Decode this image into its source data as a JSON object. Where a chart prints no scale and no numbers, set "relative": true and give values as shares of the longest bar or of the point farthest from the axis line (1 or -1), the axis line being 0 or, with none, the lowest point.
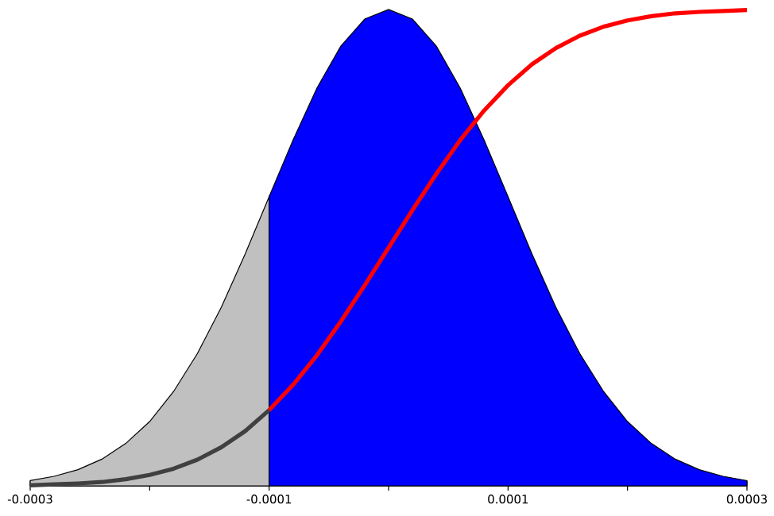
{
  "chart_data": {
    "type": "area",
    "relative": true,
    "xlim": [
      -0.0003,
      0.0003
    ],
    "xticks": [
      -0.0003,
      {
        "value": -0.0002,
        "label": null
      },
      -0.0001,
      {
        "value": 0,
        "label": null
      },
      0.0001,
      {
        "value": 0.0002,
        "label": null
      },
      0.0003
    ],
    "series": [
      {
        "color": "#c0c0c0",
        "x": [
          -0.0003,
          -0.00028,
          -0.00026,
          -0.00024,
          -0.00022,
          -0.0002,
          -0.00018,
          -0.00016,
          -0.00014,
          -0.00012,
          -0.0001
        ],
        "values": [
          0.011,
          0.02,
          0.034,
          0.056,
          0.089,
          0.135,
          0.198,
          0.278,
          0.375,
          0.487,
          0.607
        ]
      },
      {
        "color": "#0000ff",
        "x": [
          -0.0001,
          -8e-05,
          -6e-05,
          -4e-05,
          -2e-05,
          0,
          2e-05,
          4e-05,
          6e-05,
          8e-05,
          0.0001,
          0.00012,
          0.00014,
          0.00016,
          0.00018,
          0.0002,
          0.00022,
          0.00024,
          0.00026,
          0.00028,
          0.0003
        ],
        "values": [
          0.607,
          0.726,
          0.835,
          0.923,
          0.98,
          1,
          0.98,
          0.923,
          0.835,
          0.726,
          0.607,
          0.487,
          0.375,
          0.278,
          0.198,
          0.135,
          0.089,
          0.056,
          0.034,
          0.02,
          0.011
        ]
      },
      {
        "type": "line",
        "color": "#404040",
        "x": [
          -0.0003,
          -0.00028,
          -0.00026,
          -0.00024,
          -0.00022,
          -0.0002,
          -0.00018,
          -0.00016,
          -0.00014,
          -0.00012,
          -0.0001
        ],
        "values": [
          0.001,
          0.003,
          0.005,
          0.008,
          0.014,
          0.023,
          0.036,
          0.055,
          0.081,
          0.115,
          0.159
        ]
      },
      {
        "type": "line",
        "color": "#ff0000",
        "x": [
          -0.0001,
          -8e-05,
          -6e-05,
          -4e-05,
          -2e-05,
          0,
          2e-05,
          4e-05,
          6e-05,
          8e-05,
          0.0001,
          0.00012,
          0.00014,
          0.00016,
          0.00018,
          0.0002,
          0.00022,
          0.00024,
          0.00026,
          0.00028,
          0.0003
        ],
        "values": [
          0.159,
          0.212,
          0.274,
          0.345,
          0.421,
          0.5,
          0.579,
          0.655,
          0.726,
          0.788,
          0.841,
          0.885,
          0.919,
          0.945,
          0.964,
          0.977,
          0.986,
          0.992,
          0.995,
          0.997,
          0.999
        ]
      }
    ]
  }
}
